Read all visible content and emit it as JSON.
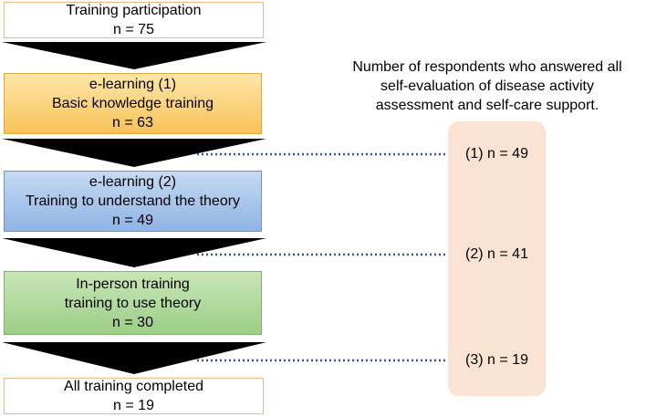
{
  "stages": {
    "start": {
      "line1": "Training participation",
      "line2": "n = 75"
    },
    "elearning1": {
      "line1": "e-learning (1)",
      "line2": "Basic knowledge training",
      "line3": "n = 63",
      "color": "#f7c258"
    },
    "elearning2": {
      "line1": "e-learning (2)",
      "line2": "Training to understand the theory",
      "line3": "n = 49",
      "color": "#8fb4e3"
    },
    "inperson": {
      "line1": "In-person training",
      "line2": "training to use theory",
      "line3": "n = 30",
      "color": "#9cce86"
    },
    "end": {
      "line1": "All training completed",
      "line2": "n = 19"
    }
  },
  "respondents": {
    "heading_line1": "Number of respondents who answered all",
    "heading_line2": "self-evaluation of disease activity",
    "heading_line3": "assessment and self-care support.",
    "panel_color": "#fbe3d4",
    "items": [
      {
        "label": "(1) n = 49"
      },
      {
        "label": "(2) n = 41"
      },
      {
        "label": "(3) n = 19"
      }
    ]
  },
  "connector_color": "#2f55a4"
}
